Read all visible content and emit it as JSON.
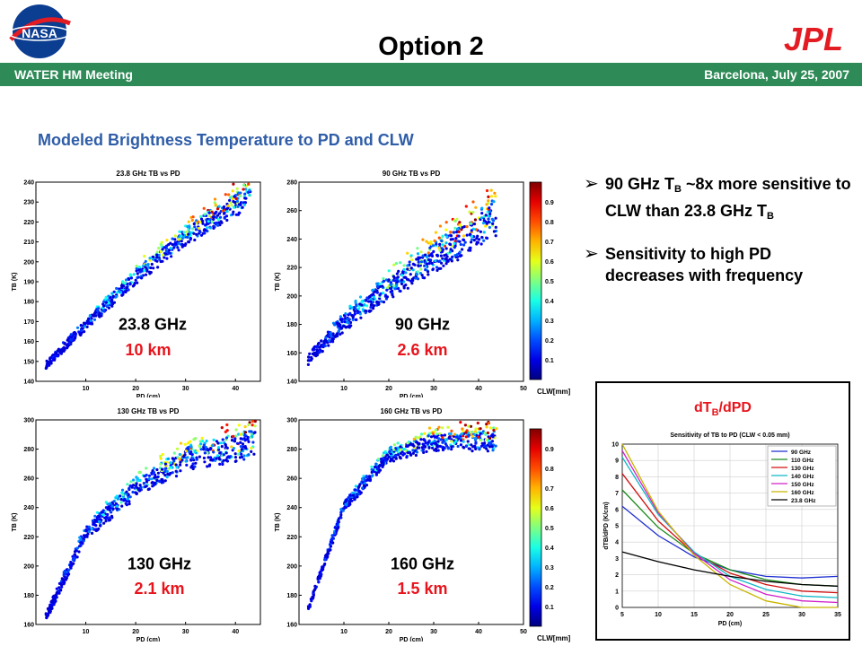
{
  "header": {
    "title": "Option 2",
    "left": "WATER HM Meeting",
    "right": "Barcelona, July 25, 2007",
    "logo_left": "NASA",
    "logo_right": "JPL"
  },
  "subtitle": "Modeled Brightness Temperature to PD and CLW",
  "bullets": [
    {
      "parts": [
        "90 GHz T",
        "B",
        " ~8x more sensitive to CLW than 23.8 GHz T",
        "B"
      ]
    },
    {
      "parts": [
        "Sensitivity to high PD decreases with frequency"
      ]
    }
  ],
  "inset_label": {
    "text": "dT",
    "sub": "B",
    "tail": "/dPD"
  },
  "colors": {
    "band": "#2e8b57",
    "subtitle": "#2f5da8",
    "red_label": "#e8141c",
    "jpl": "#e31b23"
  },
  "chart_data": [
    {
      "type": "scatter",
      "title": "23.8 GHz TB vs PD",
      "xlabel": "PD (cm)",
      "ylabel": "TB (K)",
      "xlim": [
        0,
        45
      ],
      "ylim": [
        140,
        240
      ],
      "xticks": [
        10,
        20,
        30,
        40
      ],
      "yticks": [
        140,
        150,
        160,
        170,
        180,
        190,
        200,
        210,
        220,
        230,
        240
      ],
      "freq_label": "23.8 GHz",
      "dist_label": "10 km",
      "trend": [
        [
          2,
          148
        ],
        [
          10,
          168
        ],
        [
          20,
          192
        ],
        [
          30,
          212
        ],
        [
          40,
          228
        ],
        [
          43,
          232
        ]
      ],
      "spread": 4
    },
    {
      "type": "scatter",
      "title": "90 GHz TB vs PD",
      "xlabel": "PD (cm)",
      "ylabel": "TB (K)",
      "xlim": [
        0,
        50
      ],
      "ylim": [
        140,
        280
      ],
      "xticks": [
        10,
        20,
        30,
        40,
        50
      ],
      "yticks": [
        140,
        160,
        180,
        200,
        220,
        240,
        260,
        280
      ],
      "freq_label": "90 GHz",
      "dist_label": "2.6 km",
      "trend": [
        [
          2,
          155
        ],
        [
          10,
          180
        ],
        [
          20,
          205
        ],
        [
          30,
          225
        ],
        [
          40,
          245
        ],
        [
          44,
          255
        ]
      ],
      "spread": 9
    },
    {
      "type": "scatter",
      "title": "130 GHz TB vs PD",
      "xlabel": "PD (cm)",
      "ylabel": "TB (K)",
      "xlim": [
        0,
        45
      ],
      "ylim": [
        160,
        300
      ],
      "xticks": [
        10,
        20,
        30,
        40
      ],
      "yticks": [
        160,
        180,
        200,
        220,
        240,
        260,
        280,
        300
      ],
      "freq_label": "130 GHz",
      "dist_label": "2.1 km",
      "trend": [
        [
          2,
          165
        ],
        [
          10,
          222
        ],
        [
          20,
          252
        ],
        [
          30,
          272
        ],
        [
          40,
          280
        ],
        [
          44,
          282
        ]
      ],
      "spread": 7
    },
    {
      "type": "scatter",
      "title": "160 GHz TB vs PD",
      "xlabel": "PD (cm)",
      "ylabel": "TB (K)",
      "xlim": [
        0,
        50
      ],
      "ylim": [
        160,
        300
      ],
      "xticks": [
        10,
        20,
        30,
        40,
        50
      ],
      "yticks": [
        160,
        180,
        200,
        220,
        240,
        260,
        280,
        300
      ],
      "freq_label": "160 GHz",
      "dist_label": "1.5 km",
      "trend": [
        [
          2,
          170
        ],
        [
          10,
          240
        ],
        [
          20,
          275
        ],
        [
          30,
          284
        ],
        [
          40,
          285
        ],
        [
          44,
          284
        ]
      ],
      "spread": 5
    },
    {
      "type": "line",
      "title": "Sensitivity of TB to PD (CLW < 0.05 mm)",
      "xlabel": "PD (cm)",
      "ylabel": "dTB/dPD (K/cm)",
      "xlim": [
        5,
        35
      ],
      "ylim": [
        0,
        10
      ],
      "xticks": [
        5,
        10,
        15,
        20,
        25,
        30,
        35
      ],
      "yticks": [
        0,
        1,
        2,
        3,
        4,
        5,
        6,
        7,
        8,
        9,
        10
      ],
      "x": [
        5,
        10,
        15,
        20,
        25,
        30,
        35
      ],
      "series": [
        {
          "name": "90 GHz",
          "color": "#1f2fd0",
          "values": [
            6.2,
            4.4,
            3.1,
            2.3,
            1.9,
            1.8,
            1.9
          ]
        },
        {
          "name": "110 GHz",
          "color": "#1a8a1a",
          "values": [
            7.2,
            4.9,
            3.3,
            2.3,
            1.7,
            1.4,
            1.3
          ]
        },
        {
          "name": "130 GHz",
          "color": "#d01010",
          "values": [
            8.2,
            5.3,
            3.3,
            2.1,
            1.4,
            1.0,
            0.9
          ]
        },
        {
          "name": "140 GHz",
          "color": "#10b8c8",
          "values": [
            9.2,
            5.7,
            3.4,
            1.9,
            1.1,
            0.7,
            0.6
          ]
        },
        {
          "name": "150 GHz",
          "color": "#d020c8",
          "values": [
            9.6,
            5.8,
            3.3,
            1.7,
            0.8,
            0.4,
            0.3
          ]
        },
        {
          "name": "160 GHz",
          "color": "#c8b400",
          "values": [
            10.0,
            5.9,
            3.2,
            1.4,
            0.4,
            0.0,
            0.0
          ]
        },
        {
          "name": "23.8 GHz",
          "color": "#000000",
          "values": [
            3.4,
            2.8,
            2.3,
            1.9,
            1.6,
            1.4,
            1.3
          ]
        }
      ]
    },
    {
      "type": "colorbar",
      "label": "CLW[mm]",
      "ticks": [
        0.1,
        0.2,
        0.3,
        0.4,
        0.5,
        0.6,
        0.7,
        0.8,
        0.9
      ]
    }
  ]
}
